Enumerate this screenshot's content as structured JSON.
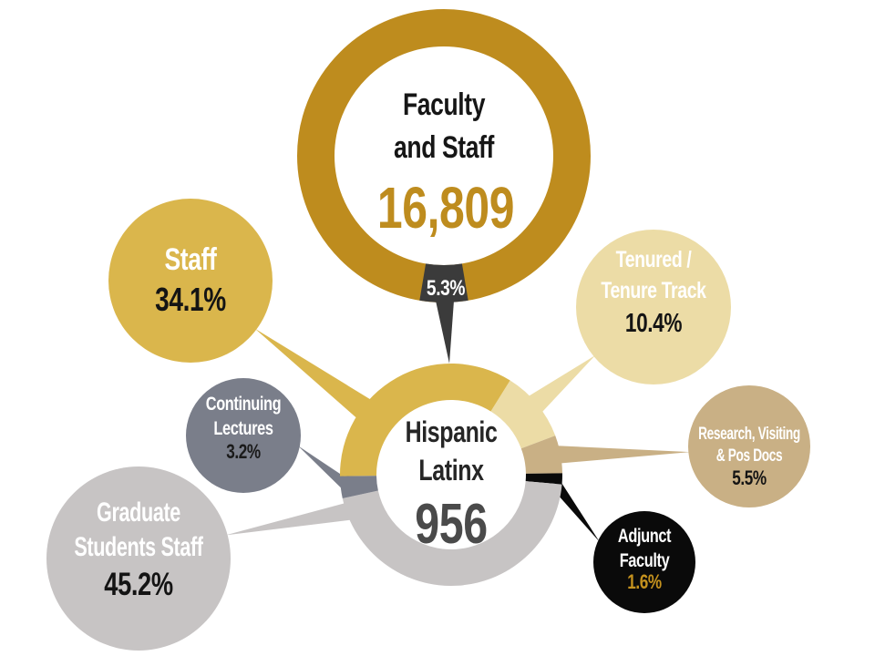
{
  "chart_data": {
    "type": "pie",
    "title": "Faculty and Staff — Hispanic Latinx representation",
    "legend_position": "none",
    "background": "#FFFFFF",
    "outer_ring": {
      "label_line1": "Faculty",
      "label_line2": "and Staff",
      "total": "16,809",
      "ring_color": "#BE8C1E",
      "highlight": {
        "label": "5.3%",
        "value": 5.3,
        "color": "#3B3B3B",
        "text_color": "#FFFFFF"
      }
    },
    "inner_donut": {
      "label_line1": "Hispanic",
      "label_line2": "Latinx",
      "total": "956",
      "total_color": "#4A4A4A",
      "start_angle_deg": 32
    },
    "segments": [
      {
        "name": "Tenured / Tenure Track",
        "line1": "Tenured /",
        "line2": "Tenure Track",
        "value": 10.4,
        "pct_label": "10.4%",
        "color": "#ECDCA6",
        "pct_color": "#141414"
      },
      {
        "name": "Research, Visiting & Pos Docs",
        "line1": "Research, Visiting",
        "line2": "& Pos Docs",
        "value": 5.5,
        "pct_label": "5.5%",
        "color": "#C9B085",
        "pct_color": "#141414"
      },
      {
        "name": "Adjunct Faculty",
        "line1": "Adjunct",
        "line2": "Faculty",
        "value": 1.6,
        "pct_label": "1.6%",
        "color": "#0A0A0A",
        "pct_color": "#C5921E"
      },
      {
        "name": "Graduate Students Staff",
        "line1": "Graduate",
        "line2": "Students Staff",
        "value": 45.2,
        "pct_label": "45.2%",
        "color": "#C7C4C4",
        "pct_color": "#141414"
      },
      {
        "name": "Continuing Lectures",
        "line1": "Continuing",
        "line2": "Lectures",
        "value": 3.2,
        "pct_label": "3.2%",
        "color": "#7A7E8A",
        "pct_color": "#1A1A1A"
      },
      {
        "name": "Staff",
        "line1": "Staff",
        "line2": "",
        "value": 34.1,
        "pct_label": "34.1%",
        "color": "#DAB64C",
        "pct_color": "#141414"
      }
    ]
  }
}
